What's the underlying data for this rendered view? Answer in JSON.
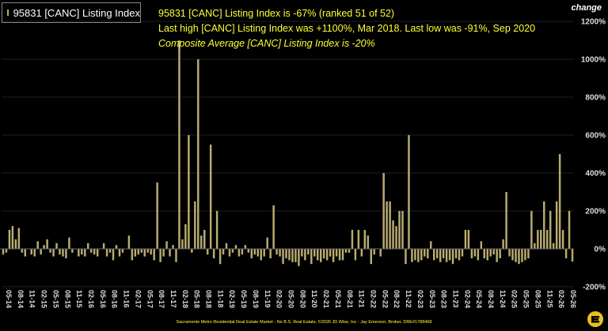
{
  "legend": {
    "label": "95831 [CANC] Listing Index",
    "color": "#b9ac70"
  },
  "info": {
    "line1": "95831 [CANC] Listing Index is -67% (ranked 51 of 52)",
    "line2": "Last high [CANC] Listing Index was +1100%, Mar 2018. Last low was -91%, Sep 2020",
    "line3": "Composite Average [CANC] Listing Index is -20%"
  },
  "axis_title": "change",
  "footer": "Sacramento Metro Residential Real Estate Market - No B.S. Real Estate, ©2026 JD Wise, Inc - Jay Emerson, Broker, DRE#1788468",
  "colors": {
    "bar": "#b9ac70",
    "axis_text": "#dddddd",
    "info_text": "#ffff33"
  },
  "icons": {
    "logo": "brand-logo-icon"
  },
  "chart_data": {
    "type": "bar",
    "ylabel": "change",
    "ylim": [
      -200,
      1200
    ],
    "yticks": [
      -200,
      0,
      200,
      400,
      600,
      800,
      1000,
      1200
    ],
    "ytick_labels": [
      "-200%",
      "0%",
      "200%",
      "400%",
      "600%",
      "800%",
      "1000%",
      "1200%"
    ],
    "xtick_labels": [
      "05-14",
      "08-14",
      "11-14",
      "02-15",
      "05-15",
      "08-15",
      "11-15",
      "02-16",
      "05-16",
      "08-16",
      "11-16",
      "02-17",
      "05-17",
      "08-17",
      "11-17",
      "02-18",
      "05-18",
      "08-18",
      "11-18",
      "02-19",
      "05-19",
      "08-19",
      "11-19",
      "02-20",
      "05-20",
      "08-20",
      "11-20",
      "02-21",
      "05-21",
      "08-21",
      "11-21",
      "02-22",
      "05-22",
      "08-22",
      "11-22",
      "02-23",
      "05-23",
      "08-23",
      "11-23",
      "02-24",
      "05-24",
      "08-24",
      "11-24",
      "02-25",
      "05-25",
      "08-25",
      "11-25",
      "02-26",
      "05-26"
    ],
    "series": [
      {
        "values": [
          -30,
          -20,
          100,
          120,
          50,
          110,
          -20,
          -40,
          0,
          -30,
          -40,
          40,
          -30,
          20,
          50,
          -20,
          -40,
          30,
          -30,
          -40,
          -50,
          60,
          -20,
          0,
          -40,
          -30,
          -40,
          30,
          -20,
          -30,
          -40,
          0,
          30,
          -40,
          -20,
          -60,
          20,
          -40,
          -20,
          0,
          70,
          -60,
          -40,
          -30,
          -20,
          -40,
          -20,
          -30,
          -60,
          350,
          -70,
          -40,
          40,
          -40,
          20,
          -70,
          1100,
          50,
          130,
          600,
          -20,
          250,
          1000,
          70,
          100,
          -30,
          550,
          -50,
          200,
          -80,
          -30,
          30,
          -40,
          -20,
          20,
          -40,
          -30,
          20,
          -20,
          -50,
          -30,
          -40,
          -60,
          -40,
          60,
          -50,
          230,
          -30,
          -40,
          -80,
          -50,
          -60,
          -70,
          -70,
          -91,
          -40,
          -60,
          -30,
          -80,
          -40,
          -60,
          -70,
          -50,
          -60,
          -40,
          -70,
          -40,
          -60,
          -60,
          -20,
          -20,
          100,
          -60,
          100,
          -40,
          100,
          70,
          -80,
          -30,
          0,
          -40,
          400,
          250,
          250,
          150,
          120,
          200,
          200,
          -80,
          600,
          -70,
          -60,
          -70,
          -60,
          -40,
          -50,
          40,
          -60,
          -50,
          -70,
          -50,
          -70,
          -60,
          -80,
          -50,
          -60,
          -40,
          100,
          100,
          -50,
          -40,
          -60,
          40,
          -50,
          -60,
          -40,
          -30,
          -70,
          -50,
          50,
          300,
          -40,
          -60,
          -70,
          -80,
          -70,
          -60,
          -50,
          200,
          30,
          100,
          100,
          250,
          100,
          200,
          30,
          250,
          500,
          100,
          -50,
          200,
          -67
        ]
      }
    ]
  }
}
